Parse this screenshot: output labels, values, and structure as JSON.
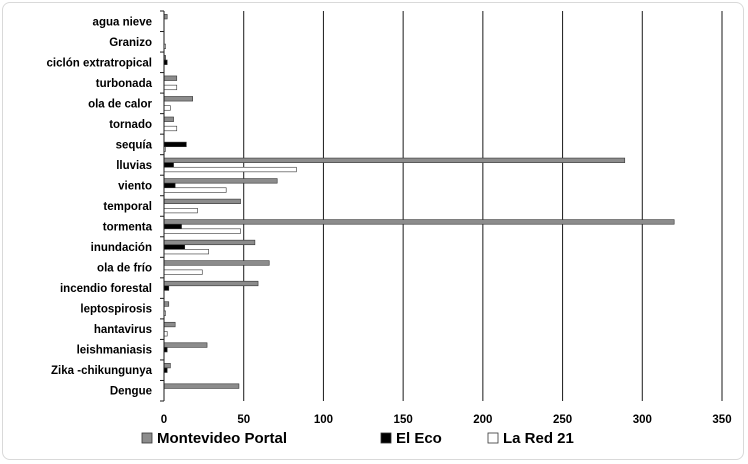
{
  "chart_data": {
    "type": "bar",
    "orientation": "horizontal",
    "categories": [
      "agua nieve",
      "Granizo",
      "ciclón extratropical",
      "turbonada",
      "ola de calor",
      "tornado",
      "sequía",
      "lluvias",
      "viento",
      "temporal",
      "tormenta",
      "inundación",
      "ola de frío",
      "incendio forestal",
      "leptospirosis",
      "hantavirus",
      "leishmaniasis",
      "Zika -chikungunya",
      "Dengue"
    ],
    "series": [
      {
        "name": "Montevideo Portal",
        "color": "#8c8c8c",
        "values": [
          2,
          0,
          1,
          8,
          18,
          6,
          0,
          289,
          71,
          48,
          320,
          57,
          66,
          59,
          3,
          7,
          27,
          4,
          47
        ]
      },
      {
        "name": "El Eco",
        "color": "#000000",
        "values": [
          0,
          0,
          2,
          0,
          0,
          0,
          14,
          6,
          7,
          0,
          11,
          13,
          0,
          3,
          0,
          0,
          2,
          2,
          0
        ]
      },
      {
        "name": "La Red 21",
        "color": "#ffffff",
        "values": [
          0,
          1,
          0,
          8,
          4,
          8,
          1,
          83,
          39,
          21,
          48,
          28,
          24,
          0,
          1,
          2,
          0,
          0,
          0
        ]
      }
    ],
    "xticks": [
      "0",
      "50",
      "100",
      "150",
      "200",
      "250",
      "300",
      "350"
    ],
    "xlim": [
      0,
      350
    ],
    "title": "",
    "xlabel": "",
    "ylabel": "",
    "grid": "vertical",
    "legend_position": "bottom"
  }
}
